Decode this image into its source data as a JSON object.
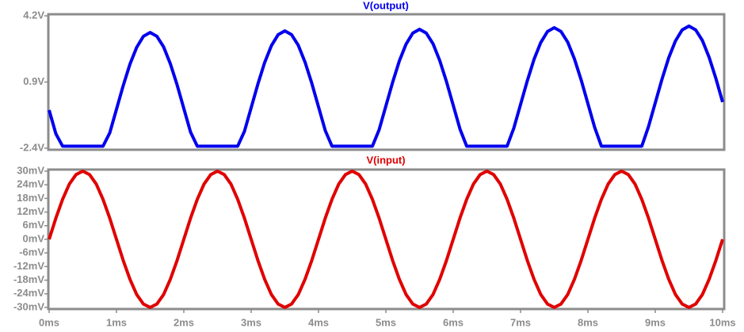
{
  "chart_data": [
    {
      "type": "line",
      "xlim": [
        0,
        10
      ],
      "ylim": [
        -2.4,
        4.2
      ],
      "yticks": [
        {
          "value": 4.2,
          "label": "4.2V"
        },
        {
          "value": 0.9,
          "label": "0.9V"
        },
        {
          "value": -2.4,
          "label": "-2.4V"
        }
      ],
      "x": [
        0,
        0.1,
        0.2,
        0.3,
        0.4,
        0.5,
        0.6,
        0.7,
        0.8,
        0.9,
        1,
        1.1,
        1.2,
        1.3,
        1.4,
        1.5,
        1.6,
        1.7,
        1.8,
        1.9,
        2,
        2.1,
        2.2,
        2.3,
        2.4,
        2.5,
        2.6,
        2.7,
        2.8,
        2.9,
        3,
        3.1,
        3.2,
        3.3,
        3.4,
        3.5,
        3.6,
        3.7,
        3.8,
        3.9,
        4,
        4.1,
        4.2,
        4.3,
        4.4,
        4.5,
        4.6,
        4.7,
        4.8,
        4.9,
        5,
        5.1,
        5.2,
        5.3,
        5.4,
        5.5,
        5.6,
        5.7,
        5.8,
        5.9,
        6,
        6.1,
        6.2,
        6.3,
        6.4,
        6.5,
        6.6,
        6.7,
        6.8,
        6.9,
        7,
        7.1,
        7.2,
        7.3,
        7.4,
        7.5,
        7.6,
        7.7,
        7.8,
        7.9,
        8,
        8.1,
        8.2,
        8.3,
        8.4,
        8.5,
        8.6,
        8.7,
        8.8,
        8.9,
        9,
        9.1,
        9.2,
        9.3,
        9.4,
        9.5,
        9.6,
        9.7,
        9.8,
        9.9,
        10
      ],
      "series": [
        {
          "name": "V(output)",
          "color": "#0000ee",
          "values": [
            -0.5,
            -1.68,
            -2.3,
            -2.3,
            -2.3,
            -2.3,
            -2.3,
            -2.3,
            -2.3,
            -1.64,
            -0.46,
            0.72,
            1.79,
            2.63,
            3.18,
            3.37,
            3.18,
            2.65,
            1.81,
            0.76,
            -0.42,
            -1.6,
            -2.3,
            -2.3,
            -2.3,
            -2.3,
            -2.3,
            -2.3,
            -2.3,
            -1.56,
            -0.38,
            0.8,
            1.87,
            2.71,
            3.26,
            3.45,
            3.26,
            2.73,
            1.89,
            0.84,
            -0.34,
            -1.52,
            -2.3,
            -2.3,
            -2.3,
            -2.3,
            -2.3,
            -2.3,
            -2.3,
            -1.48,
            -0.3,
            0.88,
            1.95,
            2.79,
            3.34,
            3.53,
            3.34,
            2.81,
            1.97,
            0.92,
            -0.26,
            -1.44,
            -2.3,
            -2.3,
            -2.3,
            -2.3,
            -2.3,
            -2.3,
            -2.3,
            -1.4,
            -0.22,
            0.96,
            2.03,
            2.87,
            3.42,
            3.61,
            3.42,
            2.89,
            2.05,
            1.0,
            -0.18,
            -1.36,
            -2.3,
            -2.3,
            -2.3,
            -2.3,
            -2.3,
            -2.3,
            -2.3,
            -1.32,
            -0.14,
            1.04,
            2.11,
            2.95,
            3.5,
            3.69,
            3.5,
            2.97,
            2.13,
            1.08,
            -0.1
          ]
        }
      ]
    },
    {
      "type": "line",
      "xlim": [
        0,
        10
      ],
      "ylim": [
        -30,
        30
      ],
      "xticks": [
        {
          "value": 0,
          "label": "0ms"
        },
        {
          "value": 1,
          "label": "1ms"
        },
        {
          "value": 2,
          "label": "2ms"
        },
        {
          "value": 3,
          "label": "3ms"
        },
        {
          "value": 4,
          "label": "4ms"
        },
        {
          "value": 5,
          "label": "5ms"
        },
        {
          "value": 6,
          "label": "6ms"
        },
        {
          "value": 7,
          "label": "7ms"
        },
        {
          "value": 8,
          "label": "8ms"
        },
        {
          "value": 9,
          "label": "9ms"
        },
        {
          "value": 10,
          "label": "10ms"
        }
      ],
      "yticks": [
        {
          "value": 30,
          "label": "30mV"
        },
        {
          "value": 24,
          "label": "24mV"
        },
        {
          "value": 18,
          "label": "18mV"
        },
        {
          "value": 12,
          "label": "12mV"
        },
        {
          "value": 6,
          "label": "6mV"
        },
        {
          "value": 0,
          "label": "0mV"
        },
        {
          "value": -6,
          "label": "-6mV"
        },
        {
          "value": -12,
          "label": "-12mV"
        },
        {
          "value": -18,
          "label": "-18mV"
        },
        {
          "value": -24,
          "label": "-24mV"
        },
        {
          "value": -30,
          "label": "-30mV"
        }
      ],
      "x": [
        0,
        0.1,
        0.2,
        0.3,
        0.4,
        0.5,
        0.6,
        0.7,
        0.8,
        0.9,
        1,
        1.1,
        1.2,
        1.3,
        1.4,
        1.5,
        1.6,
        1.7,
        1.8,
        1.9,
        2,
        2.1,
        2.2,
        2.3,
        2.4,
        2.5,
        2.6,
        2.7,
        2.8,
        2.9,
        3,
        3.1,
        3.2,
        3.3,
        3.4,
        3.5,
        3.6,
        3.7,
        3.8,
        3.9,
        4,
        4.1,
        4.2,
        4.3,
        4.4,
        4.5,
        4.6,
        4.7,
        4.8,
        4.9,
        5,
        5.1,
        5.2,
        5.3,
        5.4,
        5.5,
        5.6,
        5.7,
        5.8,
        5.9,
        6,
        6.1,
        6.2,
        6.3,
        6.4,
        6.5,
        6.6,
        6.7,
        6.8,
        6.9,
        7,
        7.1,
        7.2,
        7.3,
        7.4,
        7.5,
        7.6,
        7.7,
        7.8,
        7.9,
        8,
        8.1,
        8.2,
        8.3,
        8.4,
        8.5,
        8.6,
        8.7,
        8.8,
        8.9,
        9,
        9.1,
        9.2,
        9.3,
        9.4,
        9.5,
        9.6,
        9.7,
        9.8,
        9.9,
        10
      ],
      "series": [
        {
          "name": "V(input)",
          "color": "#e00000",
          "values": [
            0,
            9.3,
            17.6,
            24.3,
            28.5,
            30,
            28.5,
            24.3,
            17.6,
            9.3,
            0,
            -9.3,
            -17.6,
            -24.3,
            -28.5,
            -30,
            -28.5,
            -24.3,
            -17.6,
            -9.3,
            0,
            9.3,
            17.6,
            24.3,
            28.5,
            30,
            28.5,
            24.3,
            17.6,
            9.3,
            0,
            -9.3,
            -17.6,
            -24.3,
            -28.5,
            -30,
            -28.5,
            -24.3,
            -17.6,
            -9.3,
            0,
            9.3,
            17.6,
            24.3,
            28.5,
            30,
            28.5,
            24.3,
            17.6,
            9.3,
            0,
            -9.3,
            -17.6,
            -24.3,
            -28.5,
            -30,
            -28.5,
            -24.3,
            -17.6,
            -9.3,
            0,
            9.3,
            17.6,
            24.3,
            28.5,
            30,
            28.5,
            24.3,
            17.6,
            9.3,
            0,
            -9.3,
            -17.6,
            -24.3,
            -28.5,
            -30,
            -28.5,
            -24.3,
            -17.6,
            -9.3,
            0,
            9.3,
            17.6,
            24.3,
            28.5,
            30,
            28.5,
            24.3,
            17.6,
            9.3,
            0,
            -9.3,
            -17.6,
            -24.3,
            -28.5,
            -30,
            -28.5,
            -24.3,
            -17.6,
            -9.3,
            0
          ]
        }
      ]
    }
  ]
}
